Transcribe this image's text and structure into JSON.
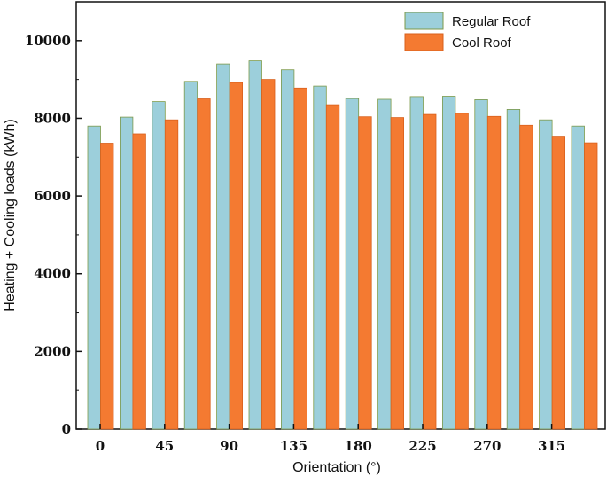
{
  "chart_data": {
    "type": "bar",
    "x": [
      0,
      22.5,
      45,
      67.5,
      90,
      112.5,
      135,
      157.5,
      180,
      202.5,
      225,
      247.5,
      270,
      292.5,
      315,
      337.5
    ],
    "xticks": [
      "0",
      "45",
      "90",
      "135",
      "180",
      "225",
      "270",
      "315"
    ],
    "xlabel": "Orientation (°)",
    "ylabel": "Heating + Cooling loads (kWh)",
    "ylim": [
      0,
      11000
    ],
    "yticks": [
      "0",
      "2000",
      "4000",
      "6000",
      "8000",
      "10000"
    ],
    "legend_position": "top-right",
    "grid": false,
    "series": [
      {
        "name": "Regular Roof",
        "color": "#9ccfdb",
        "values": [
          7800,
          8030,
          8430,
          8950,
          9400,
          9480,
          9250,
          8830,
          8510,
          8490,
          8560,
          8570,
          8480,
          8230,
          7960,
          7800
        ]
      },
      {
        "name": "Cool Roof",
        "color": "#f47a31",
        "values": [
          7360,
          7600,
          7960,
          8500,
          8920,
          9000,
          8780,
          8350,
          8040,
          8020,
          8100,
          8130,
          8050,
          7820,
          7540,
          7370
        ]
      }
    ]
  }
}
